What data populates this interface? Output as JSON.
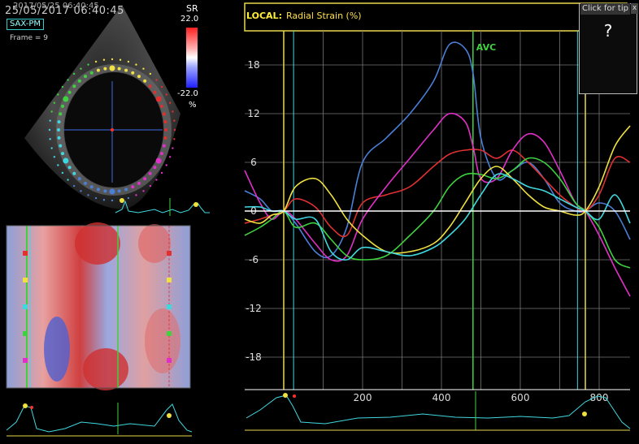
{
  "header": {
    "timestamp": "25/05/2017 06:40:45",
    "timestamp_overlay": "2017/05/25 06:40:45",
    "view": "SAX-PM",
    "frame": "Frame = 9"
  },
  "colorbar": {
    "label": "SR",
    "max": "22.0",
    "min": "-22.0",
    "unit": "%"
  },
  "tip": {
    "button": "Click for tip",
    "close": "x",
    "mark": "?"
  },
  "chart_title": {
    "prefix": "LOCAL:",
    "text": "Radial Strain (%)"
  },
  "chart_data": {
    "type": "line",
    "title": "Radial Strain (%)",
    "xlabel": "",
    "ylabel": "",
    "xlim": [
      -100,
      880
    ],
    "ylim": [
      -22,
      22
    ],
    "y_ticks": [
      18,
      12,
      6,
      0,
      -6,
      -12,
      -18
    ],
    "x_ticks": [
      200,
      400,
      600,
      800
    ],
    "grid": true,
    "markers": [
      {
        "label": "",
        "x": 0,
        "color": "#e8d84a"
      },
      {
        "label": "AVC",
        "x": 480,
        "color": "#3fd23f"
      },
      {
        "label": "",
        "x": 765,
        "color": "#e8d84a"
      }
    ],
    "series": [
      {
        "color": "#4a7fd8",
        "x": [
          -100,
          -60,
          -30,
          0,
          30,
          80,
          120,
          160,
          200,
          260,
          320,
          380,
          420,
          460,
          480,
          500,
          540,
          580,
          620,
          660,
          700,
          740,
          765,
          800,
          840,
          880
        ],
        "y": [
          2.5,
          1.5,
          0,
          0,
          -1.5,
          -5,
          -5.5,
          -2,
          6,
          9,
          12,
          16,
          20.5,
          20,
          17,
          9,
          4,
          5,
          6,
          4,
          1,
          0,
          0,
          1,
          0,
          -3.5
        ]
      },
      {
        "color": "#e03030",
        "x": [
          -100,
          -60,
          -30,
          0,
          30,
          80,
          120,
          160,
          200,
          260,
          320,
          380,
          420,
          460,
          500,
          540,
          580,
          620,
          660,
          700,
          740,
          765,
          800,
          840,
          880
        ],
        "y": [
          -1.5,
          -1,
          -0.5,
          0,
          1.5,
          0.5,
          -2,
          -3,
          1,
          2,
          3,
          5.5,
          7,
          7.5,
          7.5,
          6.5,
          7.5,
          6,
          4,
          2,
          0.5,
          0,
          2,
          6.5,
          6
        ]
      },
      {
        "color": "#e030c8",
        "x": [
          -100,
          -60,
          -30,
          0,
          30,
          80,
          120,
          160,
          200,
          260,
          320,
          380,
          420,
          460,
          480,
          500,
          540,
          580,
          620,
          660,
          700,
          740,
          765,
          800,
          840,
          880
        ],
        "y": [
          5,
          1,
          -1,
          0,
          -1,
          -4,
          -6,
          -5.5,
          -1,
          3,
          6.5,
          10,
          12,
          11,
          8,
          4,
          4,
          7.5,
          9.5,
          8.5,
          5,
          1,
          0,
          -3,
          -7,
          -10.5
        ]
      },
      {
        "color": "#3fd23f",
        "x": [
          -100,
          -60,
          -30,
          0,
          30,
          80,
          120,
          160,
          200,
          260,
          320,
          380,
          420,
          460,
          500,
          540,
          580,
          620,
          660,
          700,
          740,
          765,
          800,
          840,
          880
        ],
        "y": [
          -3,
          -2,
          -1,
          0,
          -2,
          -1.5,
          -3.5,
          -5.5,
          -6,
          -5.5,
          -3,
          0,
          3,
          4.5,
          4.5,
          4,
          5,
          6.5,
          6,
          4,
          1,
          0,
          -2,
          -6,
          -7
        ]
      },
      {
        "color": "#f0e040",
        "x": [
          -100,
          -60,
          -30,
          0,
          30,
          80,
          120,
          160,
          200,
          260,
          320,
          380,
          420,
          460,
          500,
          540,
          580,
          620,
          660,
          700,
          740,
          765,
          800,
          840,
          880
        ],
        "y": [
          -1,
          -1.5,
          -0.5,
          0,
          3,
          4,
          2,
          -1,
          -3,
          -5,
          -5,
          -4,
          -2,
          1,
          4,
          5.5,
          4,
          2,
          0.5,
          0,
          -0.5,
          0,
          3,
          8,
          10.5
        ]
      },
      {
        "color": "#40d8e0",
        "x": [
          -100,
          -60,
          -30,
          0,
          30,
          80,
          120,
          160,
          200,
          260,
          320,
          380,
          420,
          460,
          500,
          540,
          580,
          620,
          660,
          700,
          740,
          765,
          800,
          840,
          880
        ],
        "y": [
          0.5,
          0.5,
          0,
          0,
          -1,
          -1,
          -5,
          -6,
          -4.5,
          -5,
          -5.5,
          -4.5,
          -3,
          -1,
          2,
          4.5,
          4,
          3,
          2.5,
          1.5,
          0.5,
          0,
          -1,
          2,
          -1.5
        ]
      }
    ]
  }
}
